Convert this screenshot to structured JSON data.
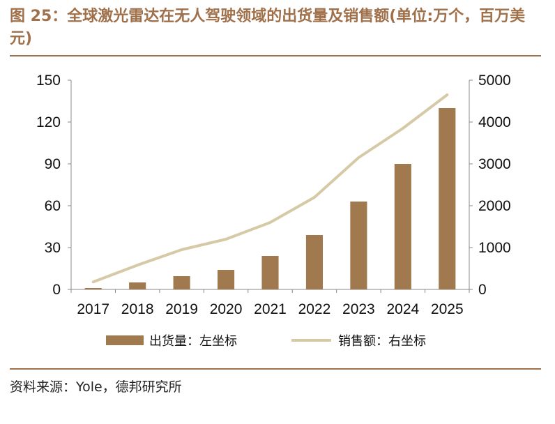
{
  "figure": {
    "title": "图 25：全球激光雷达在无人驾驶领域的出货量及销售额(单位:万个，百万美元)",
    "source": "资料来源：Yole，德邦研究所"
  },
  "colors": {
    "accent": "#a0704a",
    "bar": "#a0794f",
    "line": "#d6c9a6"
  },
  "chart_data": {
    "type": "bar",
    "categories": [
      "2017",
      "2018",
      "2019",
      "2020",
      "2021",
      "2022",
      "2023",
      "2024",
      "2025"
    ],
    "series": [
      {
        "name": "出货量：左坐标",
        "type": "bar",
        "axis": "left",
        "values": [
          1,
          5,
          9.5,
          14,
          24,
          39,
          63,
          90,
          130
        ]
      },
      {
        "name": "销售额：右坐标",
        "type": "line",
        "axis": "right",
        "values": [
          180,
          580,
          950,
          1200,
          1600,
          2200,
          3150,
          3850,
          4650
        ]
      }
    ],
    "y_left": {
      "ylim": [
        0,
        150
      ],
      "ticks": [
        "0",
        "30",
        "60",
        "90",
        "120",
        "150"
      ]
    },
    "y_right": {
      "ylim": [
        0,
        5000
      ],
      "ticks": [
        "0",
        "1000",
        "2000",
        "3000",
        "4000",
        "5000"
      ]
    },
    "grid": false,
    "legend": "bottom"
  }
}
